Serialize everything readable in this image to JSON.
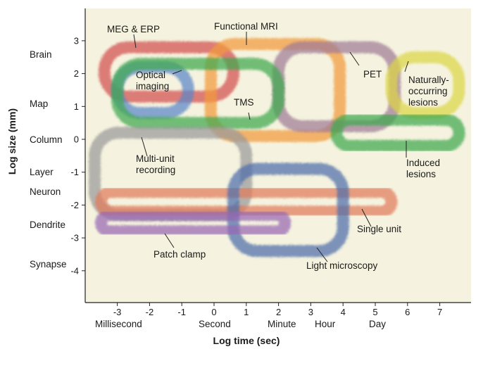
{
  "axes": {
    "x_title": "Log time (sec)",
    "y_title": "Log size (mm)",
    "x_ticks": [
      "-3",
      "-2",
      "-1",
      "0",
      "1",
      "2",
      "3",
      "4",
      "5",
      "6",
      "7"
    ],
    "y_ticks": [
      "3",
      "2",
      "1",
      "0",
      "-1",
      "-2",
      "-3",
      "-4"
    ],
    "x_range": [
      -4,
      8
    ],
    "y_range": [
      -5,
      4
    ]
  },
  "time_scale": [
    "Millisecond",
    "Second",
    "Minute",
    "Hour",
    "Day"
  ],
  "size_scale": [
    "Brain",
    "Map",
    "Column",
    "Layer",
    "Neuron",
    "Dendrite",
    "Synapse"
  ],
  "techniques": [
    {
      "label": "MEG & ERP",
      "color": "#d24f4f",
      "time": [
        -3.4,
        0.6
      ],
      "size": [
        1.3,
        2.8
      ]
    },
    {
      "label": "Functional MRI",
      "color": "#f29a3a",
      "time": [
        -0.1,
        3.9
      ],
      "size": [
        0.1,
        2.9
      ]
    },
    {
      "label": "PET",
      "color": "#a07a95",
      "time": [
        2.0,
        5.6
      ],
      "size": [
        0.4,
        2.8
      ]
    },
    {
      "label": "Naturally-occurring lesions",
      "color": "#dcd544",
      "time": [
        5.5,
        7.6
      ],
      "size": [
        0.8,
        2.5
      ]
    },
    {
      "label": "Optical imaging",
      "color": "#5b86c8",
      "time": [
        -3.0,
        -0.8
      ],
      "size": [
        0.8,
        2.2
      ]
    },
    {
      "label": "TMS",
      "color": "#3fa84e",
      "time": [
        -3.0,
        2.0
      ],
      "size": [
        0.5,
        2.3
      ]
    },
    {
      "label": "Induced lesions",
      "color": "#3fa84e",
      "time": [
        3.8,
        7.6
      ],
      "size": [
        -0.2,
        0.6
      ]
    },
    {
      "label": "Multi-unit recording",
      "color": "#9a9a9a",
      "time": [
        -3.7,
        1.0
      ],
      "size": [
        -2.3,
        0.2
      ]
    },
    {
      "label": "Single unit",
      "color": "#e07a5a",
      "time": [
        -3.5,
        5.5
      ],
      "size": [
        -2.2,
        -1.6
      ]
    },
    {
      "label": "Light microscopy",
      "color": "#4f6cab",
      "time": [
        0.6,
        4.0
      ],
      "size": [
        -3.4,
        -0.9
      ]
    },
    {
      "label": "Patch clamp",
      "color": "#9966b3",
      "time": [
        -3.5,
        2.2
      ],
      "size": [
        -2.8,
        -2.3
      ]
    }
  ]
}
